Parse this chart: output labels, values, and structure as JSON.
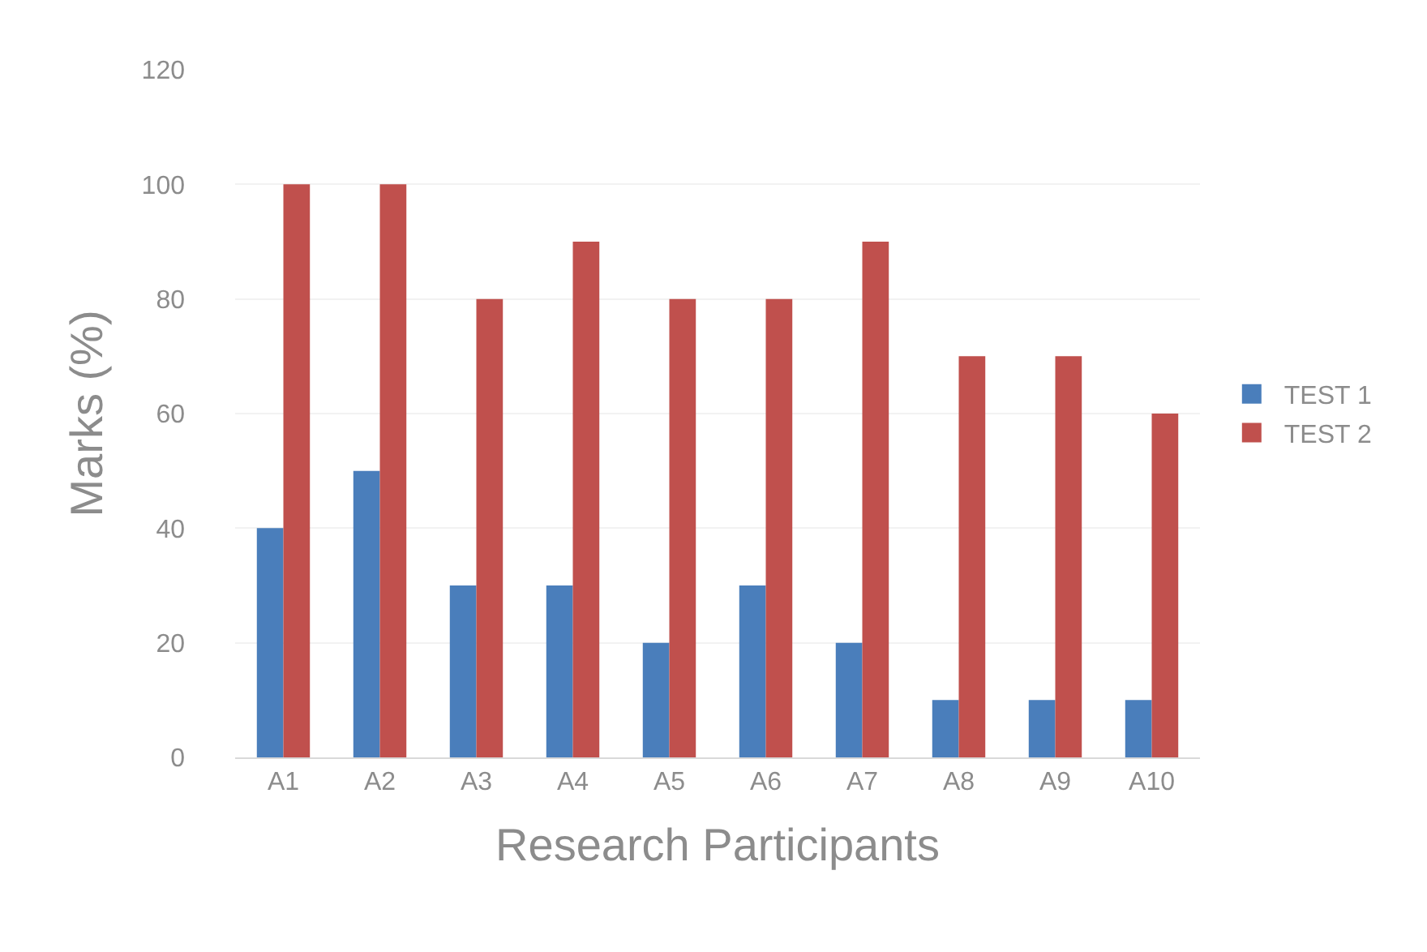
{
  "chart_data": {
    "type": "bar",
    "xlabel": "Research Participants",
    "ylabel": "Marks (%)",
    "categories": [
      "A1",
      "A2",
      "A3",
      "A4",
      "A5",
      "A6",
      "A7",
      "A8",
      "A9",
      "A10"
    ],
    "series": [
      {
        "name": "TEST 1",
        "color": "#4a7ebb",
        "values": [
          40,
          50,
          30,
          30,
          20,
          30,
          20,
          10,
          10,
          10
        ]
      },
      {
        "name": "TEST 2",
        "color": "#c0504d",
        "values": [
          100,
          100,
          80,
          90,
          80,
          80,
          90,
          70,
          70,
          60
        ]
      }
    ],
    "ylim": [
      0,
      120
    ],
    "yticks": [
      0,
      20,
      40,
      60,
      80,
      100,
      120
    ],
    "grid": "y",
    "legend": "right"
  }
}
